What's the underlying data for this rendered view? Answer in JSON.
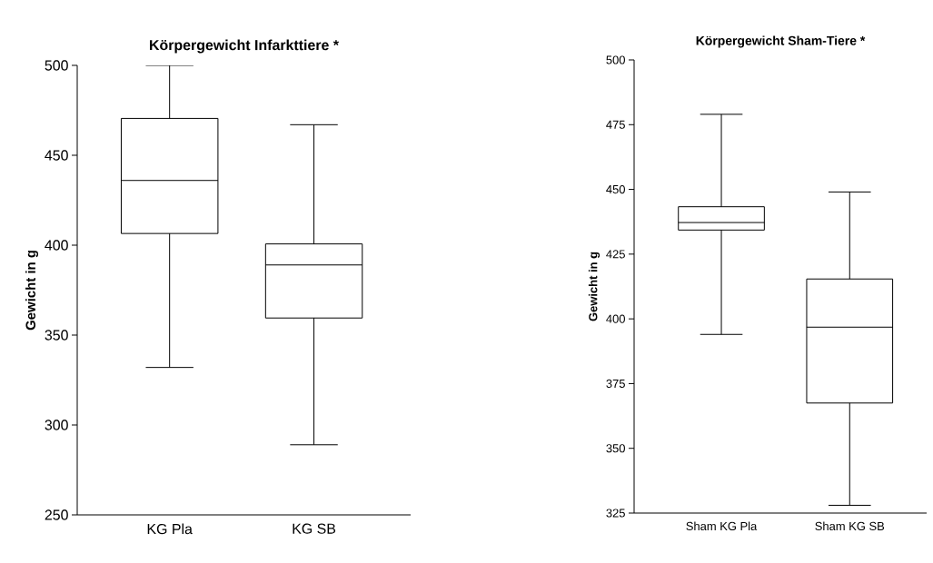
{
  "chart_data": [
    {
      "type": "box",
      "title": "Körpergewicht Infarkttiere *",
      "ylabel": "Gewicht in g",
      "categories": [
        "KG Pla",
        "KG SB"
      ],
      "boxes": [
        {
          "low": 332,
          "q1": 406.5,
          "median": 436,
          "q3": 470.5,
          "high": 500
        },
        {
          "low": 289,
          "q1": 359.5,
          "median": 389,
          "q3": 400.7,
          "high": 467
        }
      ],
      "color": "#000000",
      "ylim": [
        250,
        500
      ],
      "yticks": [
        250,
        300,
        350,
        400,
        450,
        500
      ]
    },
    {
      "type": "box",
      "title": "Körpergewicht Sham-Tiere *",
      "ylabel": "Gewicht in g",
      "categories": [
        "Sham KG Pla",
        "Sham KG SB"
      ],
      "boxes": [
        {
          "low": 394,
          "q1": 434.3,
          "median": 437.2,
          "q3": 443.3,
          "high": 479
        },
        {
          "low": 328,
          "q1": 367.5,
          "median": 396.8,
          "q3": 415.4,
          "high": 449
        }
      ],
      "color": "#000000",
      "ylim": [
        325,
        500
      ],
      "yticks": [
        325,
        350,
        375,
        400,
        425,
        450,
        475,
        500
      ]
    }
  ]
}
